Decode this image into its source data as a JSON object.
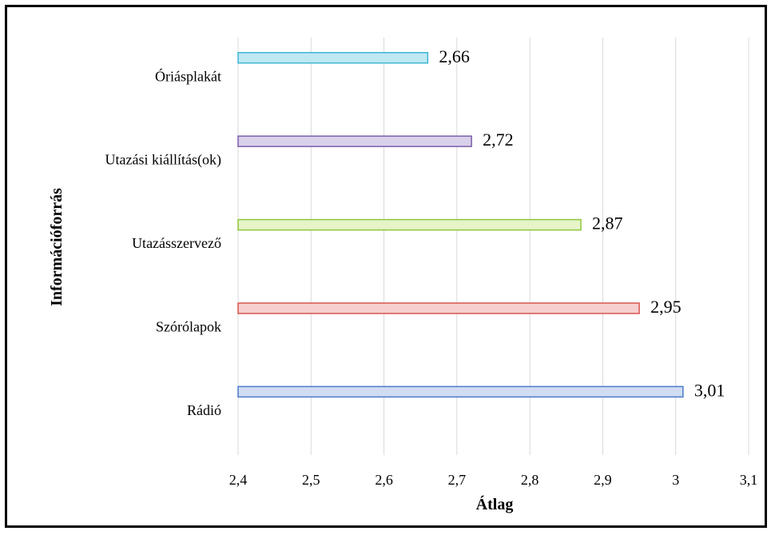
{
  "chart_data": {
    "type": "bar",
    "orientation": "horizontal",
    "xlabel": "Átlag",
    "ylabel": "Információforrás",
    "xlim": [
      2.4,
      3.1
    ],
    "x_ticks": [
      {
        "value": 2.4,
        "label": "2,4"
      },
      {
        "value": 2.5,
        "label": "2,5"
      },
      {
        "value": 2.6,
        "label": "2,6"
      },
      {
        "value": 2.7,
        "label": "2,7"
      },
      {
        "value": 2.8,
        "label": "2,8"
      },
      {
        "value": 2.9,
        "label": "2,9"
      },
      {
        "value": 3.0,
        "label": "3"
      },
      {
        "value": 3.1,
        "label": "3,1"
      }
    ],
    "grid": "vertical",
    "legend": "none",
    "bars": [
      {
        "category": "Óriásplakát",
        "value": 2.66,
        "label": "2,66",
        "fill": "#bfe8f3",
        "stroke": "#3cb6d3"
      },
      {
        "category": "Utazási kiállítás(ok)",
        "value": 2.72,
        "label": "2,72",
        "fill": "#d9d0ea",
        "stroke": "#7b5fa8"
      },
      {
        "category": "Utazásszervező",
        "value": 2.87,
        "label": "2,87",
        "fill": "#e6f4c8",
        "stroke": "#8cc63f"
      },
      {
        "category": "Szórólapok",
        "value": 2.95,
        "label": "2,95",
        "fill": "#f7cfcf",
        "stroke": "#d9534f"
      },
      {
        "category": "Rádió",
        "value": 3.01,
        "label": "3,01",
        "fill": "#cfdcf3",
        "stroke": "#4a7cc9"
      }
    ]
  }
}
